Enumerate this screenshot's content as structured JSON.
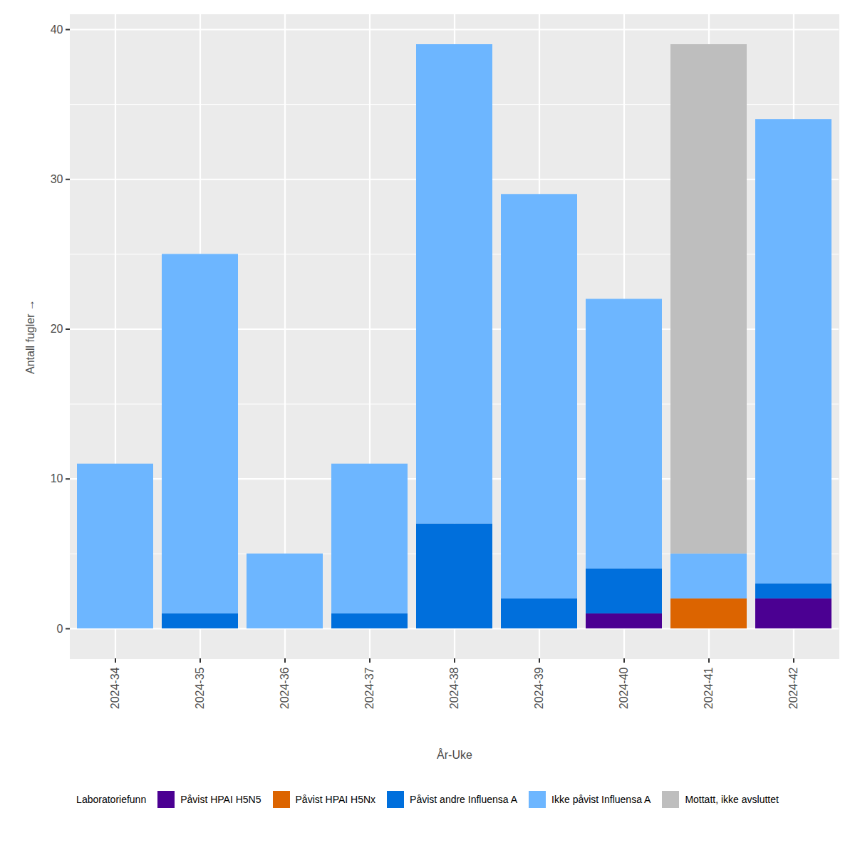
{
  "chart_data": {
    "type": "bar",
    "stacked": true,
    "x_label": "År-Uke",
    "y_label": "Antall fugler",
    "categories": [
      "2024-34",
      "2024-35",
      "2024-36",
      "2024-37",
      "2024-38",
      "2024-39",
      "2024-40",
      "2024-41",
      "2024-42"
    ],
    "series": [
      {
        "name": "Påvist HPAI H5N5",
        "color": "#4B0092",
        "values": [
          0,
          0,
          0,
          0,
          0,
          0,
          1,
          0,
          2
        ]
      },
      {
        "name": "Påvist HPAI H5Nx",
        "color": "#DC6400",
        "values": [
          0,
          0,
          0,
          0,
          0,
          0,
          0,
          2,
          0
        ]
      },
      {
        "name": "Påvist andre Influensa A",
        "color": "#006FDC",
        "values": [
          0,
          1,
          0,
          1,
          7,
          2,
          3,
          0,
          1
        ]
      },
      {
        "name": "Ikke påvist Influensa A",
        "color": "#6DB6FF",
        "values": [
          11,
          24,
          5,
          10,
          32,
          27,
          18,
          3,
          31
        ]
      },
      {
        "name": "Mottatt, ikke avsluttet",
        "color": "#BEBEBE",
        "values": [
          0,
          0,
          0,
          0,
          0,
          0,
          0,
          34,
          0
        ]
      }
    ],
    "ylim": [
      -2,
      41
    ],
    "yticks": [
      0,
      10,
      20,
      30,
      40
    ],
    "grid": true,
    "legend": "bottom",
    "legend_title": "Laboratoriefunn"
  }
}
